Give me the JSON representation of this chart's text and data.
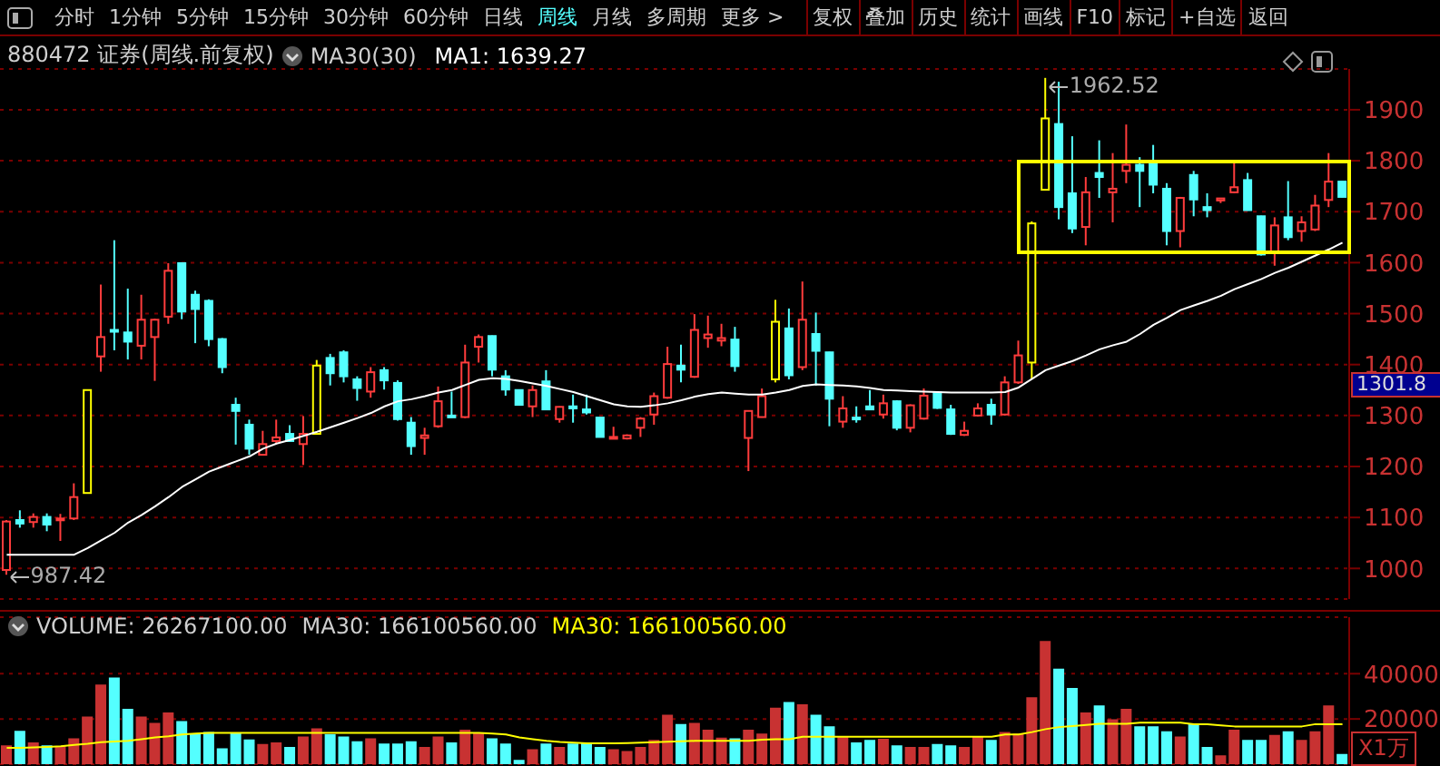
{
  "chart_data": [
    {
      "type": "other",
      "annotations": [
        "分时",
        "1分钟",
        "5分钟",
        "15分钟",
        "30分钟",
        "60分钟",
        "日线",
        "周线",
        "月线",
        "多周期",
        "更多 >",
        "复权",
        "叠加",
        "历史",
        "统计",
        "画线",
        "F10",
        "标记",
        "+自选",
        "返回"
      ]
    },
    {
      "type": "candlestick",
      "title": "880472 证券(周线.前复权)",
      "annotations": [
        "MA30(30)",
        "MA1: 1639.27",
        "1962.52",
        "987.42",
        "1301.8"
      ],
      "categories": [
        null,
        null,
        null,
        null,
        null,
        null,
        null,
        null,
        null,
        null,
        null,
        null,
        null,
        null,
        null,
        null,
        null,
        null,
        null,
        null,
        null,
        null,
        null,
        null,
        null,
        null,
        null,
        null,
        null,
        null,
        null,
        null,
        null,
        null,
        null,
        null,
        null,
        null,
        null,
        null,
        null,
        null,
        null,
        null,
        null,
        null,
        null,
        null,
        null,
        null,
        null,
        null,
        null,
        null,
        null,
        null,
        null,
        null,
        null,
        null,
        null,
        null,
        null,
        null,
        null,
        null,
        null,
        null,
        null,
        null,
        null,
        null,
        null,
        null,
        null,
        null,
        null,
        null,
        null,
        null,
        null,
        null,
        null,
        null,
        null,
        null,
        null,
        null,
        null,
        null,
        null,
        null,
        null,
        null,
        null,
        null,
        null,
        null,
        null,
        null
      ],
      "ohlc": [
        [
          997,
          1095,
          987.42,
          1092
        ],
        [
          1095,
          1114,
          1080,
          1088
        ],
        [
          1091,
          1108,
          1080,
          1101
        ],
        [
          1101,
          1108,
          1073,
          1086
        ],
        [
          1095,
          1107,
          1054,
          1098
        ],
        [
          1098,
          1167,
          1095,
          1140
        ],
        [
          1148,
          1350,
          1148,
          1350
        ],
        [
          1416,
          1557,
          1386,
          1454
        ],
        [
          1468,
          1644,
          1428,
          1465
        ],
        [
          1463,
          1549,
          1410,
          1445
        ],
        [
          1437,
          1537,
          1410,
          1488
        ],
        [
          1454,
          1490,
          1368,
          1488
        ],
        [
          1494,
          1599,
          1480,
          1584
        ],
        [
          1599,
          1600,
          1489,
          1504
        ],
        [
          1537,
          1545,
          1442,
          1509
        ],
        [
          1525,
          1528,
          1436,
          1450
        ],
        [
          1450,
          1452,
          1383,
          1395
        ],
        [
          1321,
          1335,
          1243,
          1309
        ],
        [
          1282,
          1292,
          1223,
          1235
        ],
        [
          1223,
          1270,
          1222,
          1244
        ],
        [
          1250,
          1292,
          1244,
          1257
        ],
        [
          1264,
          1281,
          1249,
          1250
        ],
        [
          1244,
          1299,
          1203,
          1264
        ],
        [
          1264,
          1409,
          1264,
          1398
        ],
        [
          1413,
          1421,
          1359,
          1383
        ],
        [
          1424,
          1428,
          1365,
          1377
        ],
        [
          1371,
          1377,
          1329,
          1354
        ],
        [
          1347,
          1395,
          1335,
          1385
        ],
        [
          1389,
          1395,
          1351,
          1369
        ],
        [
          1364,
          1369,
          1290,
          1293
        ],
        [
          1286,
          1297,
          1223,
          1240
        ],
        [
          1256,
          1276,
          1223,
          1261
        ],
        [
          1279,
          1357,
          1276,
          1328
        ],
        [
          1300,
          1347,
          1296,
          1297
        ],
        [
          1297,
          1439,
          1295,
          1404
        ],
        [
          1435,
          1459,
          1404,
          1454
        ],
        [
          1456,
          1457,
          1377,
          1390
        ],
        [
          1377,
          1389,
          1339,
          1351
        ],
        [
          1350,
          1351,
          1320,
          1321
        ],
        [
          1318,
          1359,
          1297,
          1350
        ],
        [
          1367,
          1389,
          1311,
          1312
        ],
        [
          1293,
          1318,
          1286,
          1317
        ],
        [
          1318,
          1341,
          1286,
          1314
        ],
        [
          1312,
          1341,
          1302,
          1306
        ],
        [
          1296,
          1297,
          1257,
          1258
        ],
        [
          1256,
          1278,
          1255,
          1258
        ],
        [
          1255,
          1263,
          1253,
          1261
        ],
        [
          1276,
          1297,
          1258,
          1294
        ],
        [
          1302,
          1345,
          1282,
          1338
        ],
        [
          1335,
          1435,
          1333,
          1401
        ],
        [
          1398,
          1439,
          1365,
          1390
        ],
        [
          1376,
          1499,
          1374,
          1468
        ],
        [
          1452,
          1496,
          1433,
          1459
        ],
        [
          1447,
          1480,
          1436,
          1452
        ],
        [
          1449,
          1474,
          1386,
          1397
        ],
        [
          1256,
          1310,
          1191,
          1309
        ],
        [
          1297,
          1353,
          1296,
          1338
        ],
        [
          1371,
          1527,
          1365,
          1484
        ],
        [
          1471,
          1510,
          1371,
          1379
        ],
        [
          1395,
          1563,
          1389,
          1488
        ],
        [
          1460,
          1502,
          1359,
          1427
        ],
        [
          1424,
          1425,
          1279,
          1333
        ],
        [
          1288,
          1338,
          1276,
          1314
        ],
        [
          1296,
          1318,
          1286,
          1293
        ],
        [
          1318,
          1350,
          1311,
          1312
        ],
        [
          1302,
          1341,
          1294,
          1324
        ],
        [
          1328,
          1330,
          1271,
          1276
        ],
        [
          1276,
          1322,
          1267,
          1320
        ],
        [
          1294,
          1353,
          1292,
          1339
        ],
        [
          1345,
          1347,
          1313,
          1315
        ],
        [
          1312,
          1321,
          1262,
          1264
        ],
        [
          1262,
          1288,
          1260,
          1270
        ],
        [
          1300,
          1324,
          1298,
          1314
        ],
        [
          1321,
          1333,
          1282,
          1302
        ],
        [
          1302,
          1377,
          1300,
          1365
        ],
        [
          1365,
          1447,
          1362,
          1418
        ],
        [
          1404,
          1681,
          1371,
          1677
        ],
        [
          1743,
          1962.52,
          1743,
          1883
        ],
        [
          1872,
          1955,
          1685,
          1709
        ],
        [
          1736,
          1848,
          1658,
          1667
        ],
        [
          1670,
          1768,
          1634,
          1738
        ],
        [
          1776,
          1840,
          1727,
          1768
        ],
        [
          1738,
          1815,
          1679,
          1745
        ],
        [
          1780,
          1871,
          1756,
          1792
        ],
        [
          1792,
          1807,
          1709,
          1780
        ],
        [
          1795,
          1831,
          1736,
          1753
        ],
        [
          1745,
          1756,
          1634,
          1662
        ],
        [
          1662,
          1729,
          1630,
          1727
        ],
        [
          1772,
          1780,
          1691,
          1724
        ],
        [
          1709,
          1736,
          1689,
          1703
        ],
        [
          1722,
          1727,
          1717,
          1726
        ],
        [
          1738,
          1797,
          1736,
          1748
        ],
        [
          1762,
          1776,
          1702,
          1703
        ],
        [
          1691,
          1692,
          1614,
          1616
        ],
        [
          1620,
          1689,
          1594,
          1673
        ],
        [
          1689,
          1760,
          1644,
          1650
        ],
        [
          1662,
          1691,
          1641,
          1679
        ],
        [
          1665,
          1733,
          1662,
          1712
        ],
        [
          1723,
          1815,
          1709,
          1759
        ],
        [
          1759,
          1760,
          1728,
          1729
        ]
      ],
      "colors": [
        "#ff3c3c",
        "#54ffff",
        "#ff3c3c",
        "#54ffff",
        "#ff3c3c",
        "#ff3c3c",
        "#ffff00",
        "#ff3c3c",
        "#54ffff",
        "#54ffff",
        "#ff3c3c",
        "#ff3c3c",
        "#ff3c3c",
        "#54ffff",
        "#54ffff",
        "#54ffff",
        "#54ffff",
        "#54ffff",
        "#54ffff",
        "#ff3c3c",
        "#ff3c3c",
        "#54ffff",
        "#ff3c3c",
        "#ffff00",
        "#54ffff",
        "#54ffff",
        "#54ffff",
        "#ff3c3c",
        "#54ffff",
        "#54ffff",
        "#54ffff",
        "#ff3c3c",
        "#ff3c3c",
        "#54ffff",
        "#ff3c3c",
        "#ff3c3c",
        "#54ffff",
        "#54ffff",
        "#54ffff",
        "#ff3c3c",
        "#54ffff",
        "#ff3c3c",
        "#54ffff",
        "#54ffff",
        "#54ffff",
        "#ff3c3c",
        "#ff3c3c",
        "#ff3c3c",
        "#ff3c3c",
        "#ff3c3c",
        "#54ffff",
        "#ff3c3c",
        "#ff3c3c",
        "#ff3c3c",
        "#54ffff",
        "#ff3c3c",
        "#ff3c3c",
        "#ffff00",
        "#54ffff",
        "#ff3c3c",
        "#54ffff",
        "#54ffff",
        "#ff3c3c",
        "#54ffff",
        "#54ffff",
        "#ff3c3c",
        "#54ffff",
        "#ff3c3c",
        "#ff3c3c",
        "#54ffff",
        "#54ffff",
        "#ff3c3c",
        "#ff3c3c",
        "#54ffff",
        "#ff3c3c",
        "#ff3c3c",
        "#ffff00",
        "#ffff00",
        "#54ffff",
        "#54ffff",
        "#ff3c3c",
        "#54ffff",
        "#ff3c3c",
        "#ff3c3c",
        "#54ffff",
        "#54ffff",
        "#54ffff",
        "#ff3c3c",
        "#54ffff",
        "#54ffff",
        "#ff3c3c",
        "#ff3c3c",
        "#54ffff",
        "#54ffff",
        "#ff3c3c",
        "#54ffff",
        "#ff3c3c",
        "#ff3c3c",
        "#ff3c3c",
        "#54ffff"
      ],
      "series": [
        {
          "type": "line",
          "color": "#ffffff",
          "values": [
            1027,
            1027,
            1027,
            1027,
            1027,
            1027,
            1040,
            1055,
            1070,
            1090,
            1105,
            1122,
            1140,
            1160,
            1175,
            1190,
            1200,
            1210,
            1220,
            1235,
            1245,
            1252,
            1260,
            1268,
            1277,
            1286,
            1295,
            1305,
            1318,
            1328,
            1332,
            1338,
            1345,
            1350,
            1360,
            1370,
            1373,
            1372,
            1368,
            1363,
            1358,
            1352,
            1346,
            1338,
            1330,
            1322,
            1318,
            1317,
            1320,
            1324,
            1330,
            1337,
            1342,
            1345,
            1343,
            1341,
            1341,
            1345,
            1350,
            1358,
            1361,
            1360,
            1359,
            1357,
            1354,
            1350,
            1349,
            1348,
            1347,
            1346,
            1345,
            1345,
            1345,
            1345,
            1346,
            1355,
            1372,
            1389,
            1398,
            1407,
            1418,
            1430,
            1438,
            1445,
            1460,
            1478,
            1492,
            1507,
            1516,
            1525,
            1535,
            1548,
            1558,
            1568,
            1580,
            1590,
            1602,
            1614,
            1626,
            1639.27
          ]
        }
      ],
      "ylim": [
        940,
        1980
      ],
      "yticks": [
        1000,
        1100,
        1200,
        1300,
        1400,
        1500,
        1600,
        1700,
        1800,
        1900
      ],
      "grid": "y"
    },
    {
      "type": "bar",
      "annotations": [
        "VOLUME: 26267100.00",
        "MA30: 166100560.00",
        "MA30: 166100560.00"
      ],
      "ylabel": "X1万",
      "categories": [
        null,
        null,
        null,
        null,
        null,
        null,
        null,
        null,
        null,
        null,
        null,
        null,
        null,
        null,
        null,
        null,
        null,
        null,
        null,
        null,
        null,
        null,
        null,
        null,
        null,
        null,
        null,
        null,
        null,
        null,
        null,
        null,
        null,
        null,
        null,
        null,
        null,
        null,
        null,
        null,
        null,
        null,
        null,
        null,
        null,
        null,
        null,
        null,
        null,
        null,
        null,
        null,
        null,
        null,
        null,
        null,
        null,
        null,
        null,
        null,
        null,
        null,
        null,
        null,
        null,
        null,
        null,
        null,
        null,
        null,
        null,
        null,
        null,
        null,
        null,
        null,
        null,
        null,
        null,
        null,
        null,
        null,
        null,
        null,
        null,
        null,
        null,
        null,
        null,
        null,
        null,
        null,
        null,
        null,
        null,
        null,
        null,
        null,
        null,
        null
      ],
      "series": [
        {
          "type": "bar",
          "colors": [
            "#c83232",
            "#54ffff",
            "#c83232",
            "#54ffff",
            "#c83232",
            "#c83232",
            "#c83232",
            "#c83232",
            "#54ffff",
            "#54ffff",
            "#c83232",
            "#c83232",
            "#c83232",
            "#54ffff",
            "#54ffff",
            "#54ffff",
            "#54ffff",
            "#54ffff",
            "#54ffff",
            "#c83232",
            "#c83232",
            "#54ffff",
            "#c83232",
            "#c83232",
            "#54ffff",
            "#54ffff",
            "#54ffff",
            "#c83232",
            "#54ffff",
            "#54ffff",
            "#54ffff",
            "#c83232",
            "#c83232",
            "#54ffff",
            "#c83232",
            "#c83232",
            "#54ffff",
            "#54ffff",
            "#54ffff",
            "#c83232",
            "#54ffff",
            "#c83232",
            "#54ffff",
            "#54ffff",
            "#54ffff",
            "#c83232",
            "#c83232",
            "#c83232",
            "#c83232",
            "#c83232",
            "#54ffff",
            "#c83232",
            "#c83232",
            "#c83232",
            "#54ffff",
            "#c83232",
            "#c83232",
            "#c83232",
            "#54ffff",
            "#c83232",
            "#54ffff",
            "#54ffff",
            "#c83232",
            "#54ffff",
            "#54ffff",
            "#c83232",
            "#54ffff",
            "#c83232",
            "#c83232",
            "#54ffff",
            "#54ffff",
            "#c83232",
            "#c83232",
            "#54ffff",
            "#c83232",
            "#c83232",
            "#c83232",
            "#c83232",
            "#54ffff",
            "#54ffff",
            "#c83232",
            "#54ffff",
            "#c83232",
            "#c83232",
            "#54ffff",
            "#54ffff",
            "#54ffff",
            "#c83232",
            "#54ffff",
            "#54ffff",
            "#c83232",
            "#c83232",
            "#54ffff",
            "#54ffff",
            "#c83232",
            "#54ffff",
            "#c83232",
            "#c83232",
            "#c83232",
            "#54ffff"
          ],
          "values": [
            7900,
            14300,
            9200,
            7900,
            7600,
            11000,
            20700,
            34800,
            37900,
            24100,
            20700,
            17900,
            22500,
            18700,
            13100,
            13800,
            6600,
            13500,
            10500,
            8500,
            9200,
            7200,
            11800,
            15400,
            12800,
            11800,
            9700,
            11000,
            8700,
            8700,
            9700,
            7200,
            11800,
            9200,
            14800,
            13500,
            11000,
            8700,
            1500,
            6200,
            8700,
            7200,
            8700,
            9200,
            7200,
            6200,
            5400,
            7200,
            10300,
            21500,
            17400,
            17900,
            14800,
            11300,
            11000,
            14800,
            13100,
            24600,
            27100,
            26100,
            21500,
            16400,
            11800,
            9200,
            10300,
            10800,
            7900,
            7200,
            7200,
            8500,
            7900,
            7200,
            11800,
            10300,
            13800,
            13100,
            29200,
            54100,
            41800,
            33300,
            22500,
            25600,
            19500,
            24100,
            16400,
            16400,
            14100,
            11800,
            17400,
            7200,
            3500,
            14800,
            10300,
            10300,
            12500,
            14100,
            10300,
            14100,
            25600,
            4100
          ]
        },
        {
          "type": "line",
          "color": "#ffff00",
          "values": [
            7200,
            7200,
            7400,
            7600,
            7900,
            8500,
            9000,
            9700,
            10000,
            10300,
            11000,
            11800,
            12300,
            13100,
            13500,
            13800,
            13800,
            13800,
            13800,
            13800,
            13800,
            13800,
            13800,
            13800,
            13800,
            13800,
            13800,
            13800,
            13800,
            13800,
            13800,
            13800,
            13800,
            13800,
            13800,
            13800,
            13500,
            13100,
            11800,
            11000,
            10300,
            9800,
            9500,
            9200,
            9200,
            9200,
            9300,
            9500,
            9700,
            9900,
            10100,
            10300,
            10300,
            10300,
            10300,
            10300,
            10800,
            11000,
            11000,
            12100,
            12100,
            12100,
            12100,
            12100,
            12100,
            12100,
            12100,
            12100,
            12100,
            12100,
            12100,
            12100,
            12100,
            12100,
            13100,
            13100,
            14200,
            15500,
            16400,
            16900,
            17400,
            17900,
            17900,
            17900,
            18400,
            18400,
            18400,
            18400,
            17700,
            17700,
            17200,
            16700,
            16700,
            16700,
            16700,
            16700,
            16700,
            17700,
            17700,
            17700
          ]
        }
      ],
      "ylim": [
        0,
        65000
      ],
      "yticks": [
        20000,
        40000
      ],
      "grid": "y"
    }
  ]
}
